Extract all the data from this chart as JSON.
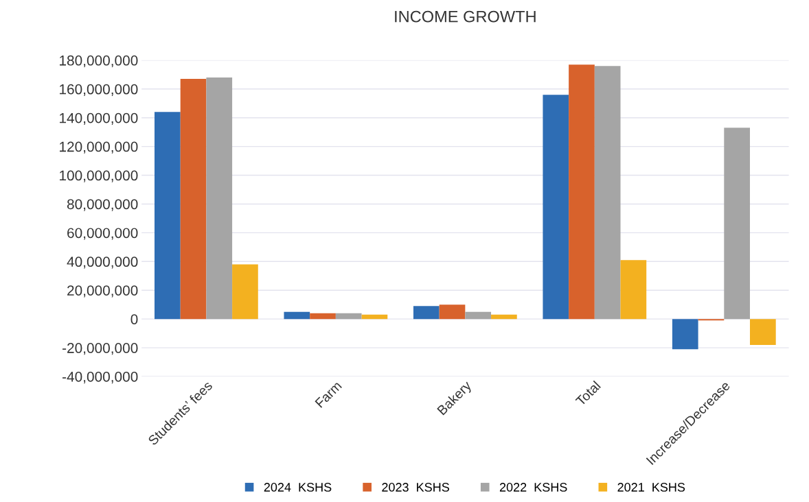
{
  "chart_data": {
    "type": "bar",
    "title": "INCOME GROWTH",
    "categories": [
      "Students’ fees",
      "Farm",
      "Bakery",
      "Total",
      "Increase/Decrease"
    ],
    "series": [
      {
        "name": "2024  KSHS",
        "color": "#2e6db4",
        "values": [
          144000000,
          5000000,
          9000000,
          156000000,
          -21000000
        ]
      },
      {
        "name": "2023  KSHS",
        "color": "#d8622c",
        "values": [
          167000000,
          4000000,
          10000000,
          177000000,
          -1000000
        ]
      },
      {
        "name": "2022  KSHS",
        "color": "#a5a5a5",
        "values": [
          168000000,
          4000000,
          5000000,
          176000000,
          133000000
        ]
      },
      {
        "name": "2021  KSHS",
        "color": "#f3b120",
        "values": [
          38000000,
          3000000,
          3000000,
          41000000,
          -18000000
        ]
      }
    ],
    "ylim": [
      -40000000,
      180000000
    ],
    "yticks": [
      {
        "value": -40000000,
        "label": "-40,000,000"
      },
      {
        "value": -20000000,
        "label": "-20,000,000"
      },
      0,
      {
        "value": 20000000,
        "label": "20,000,000"
      },
      {
        "value": 40000000,
        "label": "40,000,000"
      },
      {
        "value": 60000000,
        "label": "60,000,000"
      },
      {
        "value": 80000000,
        "label": "80,000,000"
      },
      {
        "value": 100000000,
        "label": "100,000,000"
      },
      {
        "value": 120000000,
        "label": "120,000,000"
      },
      {
        "value": 140000000,
        "label": "140,000,000"
      },
      {
        "value": 160000000,
        "label": "160,000,000"
      },
      {
        "value": 180000000,
        "label": "180,000,000"
      }
    ],
    "grid": "y",
    "legend": "bottom"
  }
}
